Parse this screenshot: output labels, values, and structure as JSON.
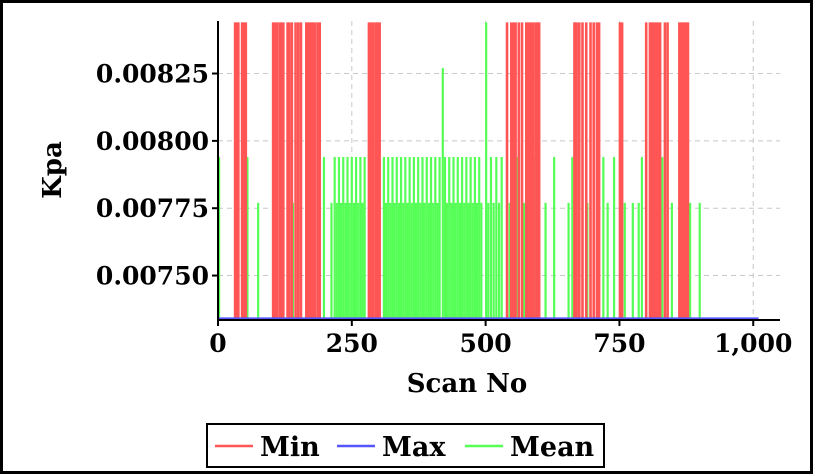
{
  "chart_data": {
    "type": "line",
    "xlabel": "Scan No",
    "ylabel": "Kpa",
    "xlim": [
      0,
      1050
    ],
    "ylim": [
      0.007335,
      0.008445
    ],
    "x_ticks": [
      0,
      250,
      500,
      750,
      1000
    ],
    "x_tick_labels": [
      "0",
      "250",
      "500",
      "750",
      "1,000"
    ],
    "y_ticks": [
      0.0075,
      0.00775,
      0.008,
      0.00825
    ],
    "y_tick_labels": [
      "0.00750",
      "0.00775",
      "0.00800",
      "0.00825"
    ],
    "grid": true,
    "legend_position": "bottom",
    "series": [
      {
        "name": "Min",
        "color": "#ff5555",
        "baseline": 0.00734,
        "spike_to": 0.00844,
        "spikes_x": [
          32,
          35,
          38,
          45,
          48,
          52,
          103,
          106,
          110,
          115,
          118,
          122,
          130,
          133,
          138,
          145,
          150,
          155,
          165,
          168,
          172,
          175,
          178,
          182,
          187,
          190,
          282,
          286,
          290,
          295,
          298,
          302,
          540,
          548,
          552,
          556,
          562,
          568,
          576,
          580,
          584,
          588,
          593,
          597,
          600,
          666,
          668,
          670,
          675,
          681,
          688,
          696,
          702,
          708,
          712,
          751,
          755,
          800,
          807,
          810,
          814,
          818,
          822,
          826,
          835,
          840,
          862,
          866,
          870,
          874,
          878
        ]
      },
      {
        "name": "Max",
        "color": "#5555ff",
        "baseline": 0.00734,
        "x_end": 1010,
        "spikes_x": []
      },
      {
        "name": "Mean",
        "color": "#55ff55",
        "baseline": 0.00734,
        "spikes": [
          [
            2,
            0.00794
          ],
          [
            55,
            0.00794
          ],
          [
            75,
            0.00777
          ],
          [
            140,
            0.00777
          ],
          [
            175,
            0.00794
          ],
          [
            198,
            0.00794
          ],
          [
            212,
            0.00777
          ],
          [
            218,
            0.00794
          ],
          [
            222,
            0.00777
          ],
          [
            226,
            0.00794
          ],
          [
            230,
            0.00777
          ],
          [
            234,
            0.00794
          ],
          [
            238,
            0.00777
          ],
          [
            242,
            0.00794
          ],
          [
            246,
            0.00777
          ],
          [
            250,
            0.00794
          ],
          [
            254,
            0.00777
          ],
          [
            258,
            0.00794
          ],
          [
            262,
            0.00777
          ],
          [
            266,
            0.00794
          ],
          [
            270,
            0.00777
          ],
          [
            274,
            0.00794
          ],
          [
            310,
            0.00794
          ],
          [
            314,
            0.00777
          ],
          [
            318,
            0.00794
          ],
          [
            322,
            0.00777
          ],
          [
            326,
            0.00794
          ],
          [
            330,
            0.00777
          ],
          [
            334,
            0.00794
          ],
          [
            338,
            0.00777
          ],
          [
            342,
            0.00794
          ],
          [
            346,
            0.00777
          ],
          [
            350,
            0.00794
          ],
          [
            354,
            0.00777
          ],
          [
            358,
            0.00794
          ],
          [
            362,
            0.00777
          ],
          [
            366,
            0.00794
          ],
          [
            370,
            0.00777
          ],
          [
            374,
            0.00794
          ],
          [
            378,
            0.00777
          ],
          [
            382,
            0.00794
          ],
          [
            386,
            0.00777
          ],
          [
            390,
            0.00794
          ],
          [
            394,
            0.00777
          ],
          [
            398,
            0.00794
          ],
          [
            402,
            0.00777
          ],
          [
            406,
            0.00794
          ],
          [
            410,
            0.00777
          ],
          [
            414,
            0.00794
          ],
          [
            420,
            0.00827
          ],
          [
            424,
            0.00794
          ],
          [
            428,
            0.00777
          ],
          [
            432,
            0.00794
          ],
          [
            436,
            0.00777
          ],
          [
            440,
            0.00794
          ],
          [
            444,
            0.00777
          ],
          [
            448,
            0.00794
          ],
          [
            452,
            0.00777
          ],
          [
            456,
            0.00794
          ],
          [
            460,
            0.00777
          ],
          [
            464,
            0.00794
          ],
          [
            468,
            0.00777
          ],
          [
            472,
            0.00794
          ],
          [
            476,
            0.00777
          ],
          [
            480,
            0.00794
          ],
          [
            484,
            0.00777
          ],
          [
            488,
            0.00794
          ],
          [
            492,
            0.00777
          ],
          [
            501,
            0.00844
          ],
          [
            505,
            0.00777
          ],
          [
            510,
            0.00794
          ],
          [
            515,
            0.00777
          ],
          [
            520,
            0.00794
          ],
          [
            525,
            0.00777
          ],
          [
            530,
            0.00794
          ],
          [
            545,
            0.00777
          ],
          [
            560,
            0.00794
          ],
          [
            572,
            0.00777
          ],
          [
            590,
            0.00794
          ],
          [
            612,
            0.00777
          ],
          [
            628,
            0.00794
          ],
          [
            655,
            0.00777
          ],
          [
            662,
            0.00794
          ],
          [
            690,
            0.00777
          ],
          [
            720,
            0.00794
          ],
          [
            728,
            0.00777
          ],
          [
            740,
            0.00794
          ],
          [
            760,
            0.00777
          ],
          [
            775,
            0.00777
          ],
          [
            786,
            0.00777
          ],
          [
            792,
            0.00794
          ],
          [
            830,
            0.00794
          ],
          [
            848,
            0.00777
          ],
          [
            882,
            0.00777
          ],
          [
            900,
            0.00777
          ]
        ]
      }
    ]
  }
}
